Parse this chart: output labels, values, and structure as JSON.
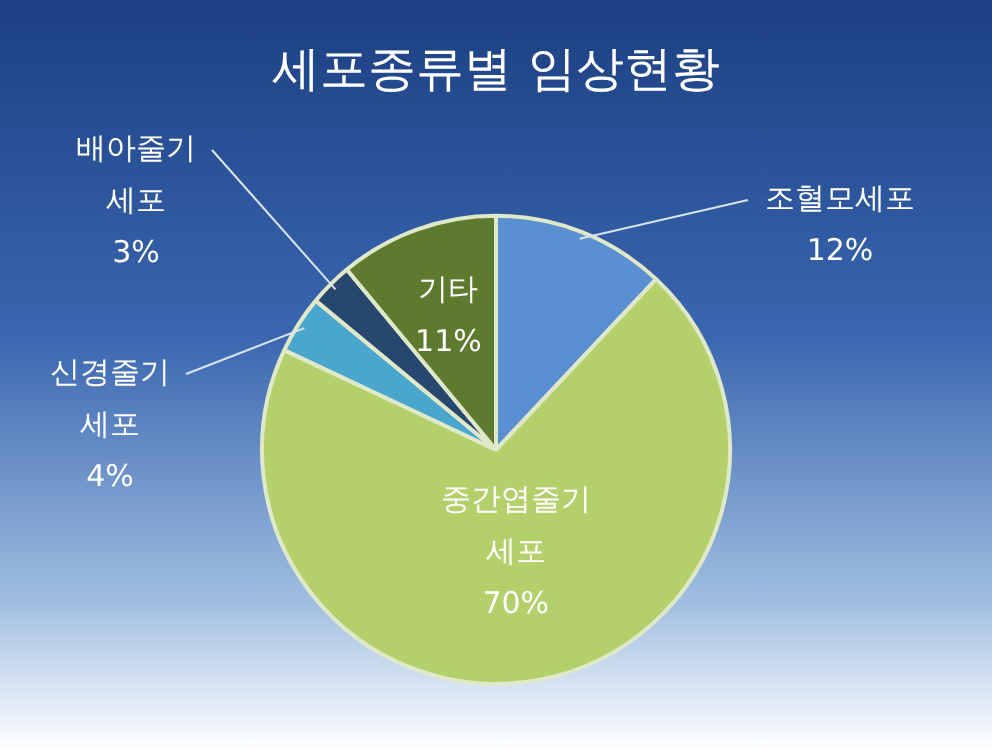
{
  "chart_data": {
    "type": "pie",
    "title": "세포종류별 임상현황",
    "categories": [
      "조혈모세포",
      "중간엽줄기 세포",
      "신경줄기 세포",
      "배아줄기 세포",
      "기타"
    ],
    "values": [
      12,
      70,
      4,
      3,
      11
    ],
    "colors": [
      "#5a8fd2",
      "#b4d06a",
      "#4aa6cc",
      "#27476e",
      "#5d7a2e"
    ],
    "value_labels": [
      "12%",
      "70%",
      "4%",
      "3%",
      "11%"
    ],
    "legend": false
  }
}
